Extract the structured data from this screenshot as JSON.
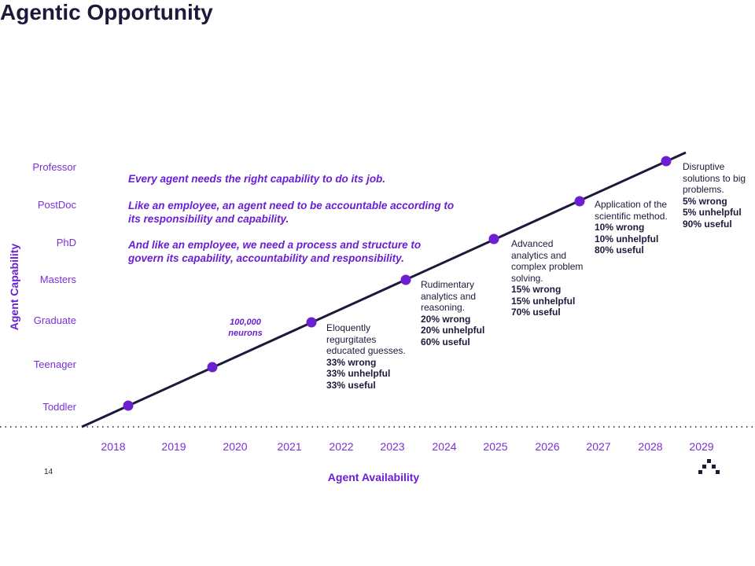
{
  "title": "Agentic Opportunity",
  "page_number": "14",
  "y_axis": {
    "label": "Agent Capability",
    "levels": [
      "Toddler",
      "Teenager",
      "Graduate",
      "Masters",
      "PhD",
      "PostDoc",
      "Professor"
    ]
  },
  "x_axis": {
    "label": "Agent Availability",
    "years": [
      "2018",
      "2019",
      "2020",
      "2021",
      "2022",
      "2023",
      "2024",
      "2025",
      "2026",
      "2027",
      "2028",
      "2029"
    ]
  },
  "messages": [
    "Every agent needs the right capability to do its job.",
    "Like an employee, an agent need to be accountable according to its responsibility and capability.",
    "And like an employee, we need a process and structure to govern its capability, accountability and responsibility."
  ],
  "neurons_note": {
    "line1": "100,000",
    "line2": "neurons"
  },
  "milestones": [
    {
      "desc": [
        "Eloquently",
        "regurgitates",
        "educated guesses."
      ],
      "stats": [
        "33% wrong",
        "33% unhelpful",
        "33% useful"
      ]
    },
    {
      "desc": [
        "Rudimentary",
        "analytics and",
        "reasoning."
      ],
      "stats": [
        "20% wrong",
        "20% unhelpful",
        "60% useful"
      ]
    },
    {
      "desc": [
        "Advanced",
        "analytics and",
        "complex problem",
        "solving."
      ],
      "stats": [
        "15% wrong",
        "15% unhelpful",
        "70% useful"
      ]
    },
    {
      "desc": [
        "Application of the",
        "scientific method."
      ],
      "stats": [
        "10% wrong",
        "10% unhelpful",
        "80% useful"
      ]
    },
    {
      "desc": [
        "Disruptive",
        "solutions to big",
        "problems."
      ],
      "stats": [
        "5% wrong",
        "5% unhelpful",
        "90% useful"
      ]
    }
  ],
  "colors": {
    "accent": "#7a2fd6",
    "dot": "#6a1fd0",
    "line": "#1b1a3a",
    "text": "#1b1a3a"
  }
}
